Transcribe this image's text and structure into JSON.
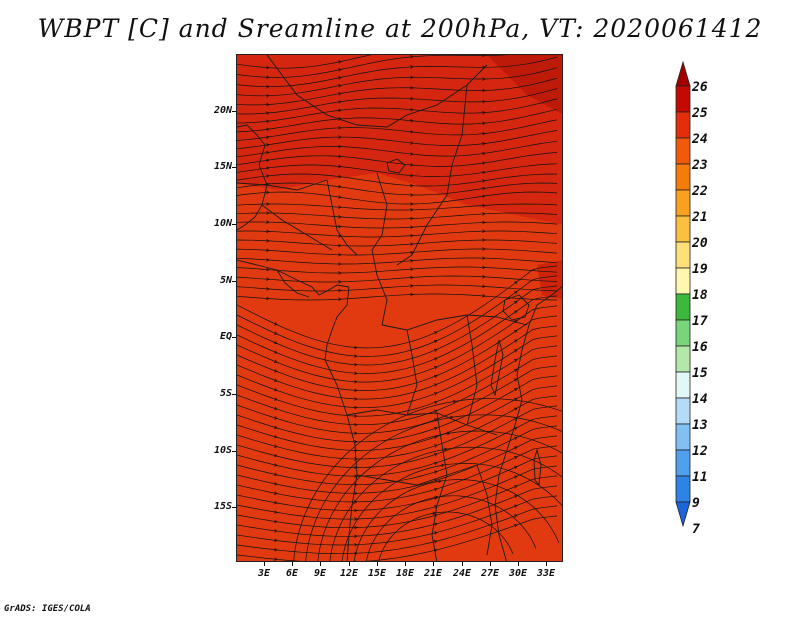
{
  "title": "WBPT [C] and Sreamline at 200hPa, VT: 2020061412",
  "credit": "GrADS: IGES/COLA",
  "map": {
    "variable": "WBPT",
    "units": "C",
    "level": "200hPa",
    "valid_time": "2020061412",
    "fill_color": "#e23a10",
    "warm_patch_color": "#d02010",
    "streamline_color": "#111111",
    "coastline_color": "#1a1a1a"
  },
  "y_axis": {
    "ticks": [
      {
        "label": "20N",
        "lat": 20
      },
      {
        "label": "15N",
        "lat": 15
      },
      {
        "label": "10N",
        "lat": 10
      },
      {
        "label": "5N",
        "lat": 5
      },
      {
        "label": "EQ",
        "lat": 0
      },
      {
        "label": "5S",
        "lat": -5
      },
      {
        "label": "10S",
        "lat": -10
      },
      {
        "label": "15S",
        "lat": -15
      }
    ]
  },
  "x_axis": {
    "ticks": [
      {
        "label": "3E",
        "lon": 3
      },
      {
        "label": "6E",
        "lon": 6
      },
      {
        "label": "9E",
        "lon": 9
      },
      {
        "label": "12E",
        "lon": 12
      },
      {
        "label": "15E",
        "lon": 15
      },
      {
        "label": "18E",
        "lon": 18
      },
      {
        "label": "21E",
        "lon": 21
      },
      {
        "label": "24E",
        "lon": 24
      },
      {
        "label": "27E",
        "lon": 27
      },
      {
        "label": "30E",
        "lon": 30
      },
      {
        "label": "33E",
        "lon": 33
      }
    ]
  },
  "colorbar": {
    "levels": [
      {
        "label": "26",
        "color": "#a00000"
      },
      {
        "label": "25",
        "color": "#c40a00"
      },
      {
        "label": "24",
        "color": "#e22e0a"
      },
      {
        "label": "23",
        "color": "#f05a0a"
      },
      {
        "label": "22",
        "color": "#f57c0a"
      },
      {
        "label": "21",
        "color": "#f9a020"
      },
      {
        "label": "20",
        "color": "#fbc040"
      },
      {
        "label": "19",
        "color": "#fde07a"
      },
      {
        "label": "18",
        "color": "#fef7b0"
      },
      {
        "label": "17",
        "color": "#3cb83c"
      },
      {
        "label": "16",
        "color": "#7ad47a"
      },
      {
        "label": "15",
        "color": "#b4e8a8"
      },
      {
        "label": "14",
        "color": "#e2f8f6"
      },
      {
        "label": "13",
        "color": "#b4dcf8"
      },
      {
        "label": "12",
        "color": "#82c0f4"
      },
      {
        "label": "11",
        "color": "#50a0ec"
      },
      {
        "label": "9",
        "color": "#2e84e4"
      },
      {
        "label": "7",
        "color": "#1a64dc"
      }
    ]
  }
}
